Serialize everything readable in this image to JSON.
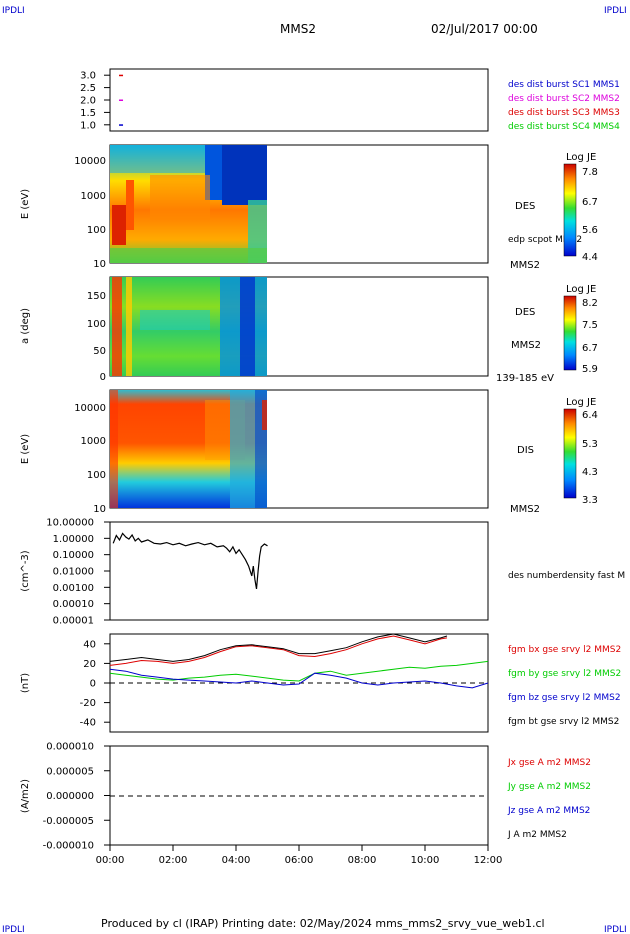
{
  "header": {
    "title": "MMS2",
    "date": "02/Jul/2017 00:00",
    "corner_left": "IPDLI",
    "corner_right": "IPDLI",
    "corner_bottom_left": "IPDLI",
    "corner_bottom_right": "IPDLI"
  },
  "footer": {
    "text": "Produced by cl (IRAP)   Printing date: 02/May/2024   mms_mms2_srvy_vue_web1.cl"
  },
  "colors": {
    "c1": "#0000cc",
    "c2": "#dd00dd",
    "c3": "#dd0000",
    "c4": "#00cc00",
    "black": "#000000"
  },
  "chart_data": [
    {
      "type": "scatter",
      "panel": "spacecraft",
      "ylim": [
        0.75,
        3.25
      ],
      "yticks": [
        "3.0",
        "2.5",
        "2.0",
        "1.5",
        "1.0"
      ],
      "legend": [
        {
          "name": "des dist burst SC1 MMS1",
          "color": "#0000cc"
        },
        {
          "name": "des dist burst SC2 MMS2",
          "color": "#dd00dd"
        },
        {
          "name": "des dist burst SC3 MMS3",
          "color": "#dd0000"
        },
        {
          "name": "des dist burst SC4 MMS4",
          "color": "#00cc00"
        }
      ],
      "points": [
        {
          "x": 0.35,
          "y": 3.0,
          "color": "#dd0000"
        },
        {
          "x": 0.35,
          "y": 2.0,
          "color": "#dd00dd"
        },
        {
          "x": 0.35,
          "y": 1.0,
          "color": "#0000cc"
        }
      ]
    },
    {
      "type": "heatmap",
      "panel": "des_energy",
      "ylabel": "E (eV)",
      "yscale": "log",
      "yticks": [
        "10000",
        "1000",
        "100",
        "10"
      ],
      "xlim": [
        0,
        12
      ],
      "data_end_hours": 5.0,
      "right_label": "DES",
      "right_sublabel": "edp scpot MMS2",
      "right_footer": "MMS2",
      "colorbar": {
        "title": "Log JE",
        "ticks": [
          "7.8",
          "6.7",
          "5.6",
          "4.4"
        ]
      }
    },
    {
      "type": "heatmap",
      "panel": "des_pitch",
      "ylabel": "a (deg)",
      "yticks": [
        "150",
        "100",
        "50",
        "0"
      ],
      "ylim": [
        0,
        180
      ],
      "xlim": [
        0,
        12
      ],
      "data_end_hours": 5.0,
      "right_label": "DES",
      "right_sublabel": "MMS2",
      "right_footer": "139-185 eV",
      "colorbar": {
        "title": "Log JE",
        "ticks": [
          "8.2",
          "7.5",
          "6.7",
          "5.9"
        ]
      }
    },
    {
      "type": "heatmap",
      "panel": "dis_energy",
      "ylabel": "E (eV)",
      "yscale": "log",
      "yticks": [
        "10000",
        "1000",
        "100",
        "10"
      ],
      "xlim": [
        0,
        12
      ],
      "data_end_hours": 5.0,
      "right_label": "DIS",
      "right_footer": "MMS2",
      "colorbar": {
        "title": "Log JE",
        "ticks": [
          "6.4",
          "5.3",
          "4.3",
          "3.3"
        ]
      }
    },
    {
      "type": "line",
      "panel": "density",
      "ylabel": "(cm^-3)",
      "yscale": "log",
      "yticks": [
        "10.00000",
        "1.00000",
        "0.10000",
        "0.01000",
        "0.00100",
        "0.00010",
        "0.00001"
      ],
      "xlim": [
        0,
        12
      ],
      "series": [
        {
          "name": "des numberdensity fast M",
          "color": "#000000",
          "x": [
            0.1,
            0.2,
            0.3,
            0.4,
            0.5,
            0.6,
            0.7,
            0.8,
            0.9,
            1.0,
            1.2,
            1.4,
            1.6,
            1.8,
            2.0,
            2.2,
            2.4,
            2.6,
            2.8,
            3.0,
            3.2,
            3.4,
            3.6,
            3.7,
            3.8,
            3.9,
            4.0,
            4.1,
            4.2,
            4.3,
            4.4,
            4.5,
            4.55,
            4.6,
            4.65,
            4.7,
            4.75,
            4.8,
            4.9,
            5.0
          ],
          "y": [
            0.5,
            1.5,
            0.8,
            2.0,
            1.2,
            0.9,
            1.6,
            0.7,
            1.0,
            0.6,
            0.8,
            0.5,
            0.45,
            0.55,
            0.4,
            0.5,
            0.35,
            0.45,
            0.55,
            0.4,
            0.5,
            0.3,
            0.35,
            0.25,
            0.15,
            0.3,
            0.12,
            0.2,
            0.1,
            0.05,
            0.02,
            0.005,
            0.02,
            0.003,
            0.0008,
            0.01,
            0.08,
            0.3,
            0.45,
            0.35
          ]
        }
      ]
    },
    {
      "type": "line",
      "panel": "magnetic_field",
      "ylabel": "(nT)",
      "ylim": [
        -50,
        50
      ],
      "yticks": [
        "40",
        "20",
        "0",
        "-20",
        "-40"
      ],
      "xlim": [
        0,
        12
      ],
      "series": [
        {
          "name": "fgm bx gse srvy l2 MMS2",
          "color": "#dd0000",
          "x": [
            0,
            0.5,
            1,
            1.5,
            2,
            2.5,
            3,
            3.5,
            4,
            4.5,
            5,
            5.5,
            6,
            6.5,
            7,
            7.5,
            8,
            8.5,
            9,
            9.5,
            10,
            10.5,
            10.7
          ],
          "y": [
            18,
            20,
            23,
            22,
            20,
            22,
            26,
            32,
            37,
            38,
            36,
            34,
            28,
            27,
            30,
            34,
            40,
            45,
            48,
            44,
            40,
            45,
            46
          ]
        },
        {
          "name": "fgm by gse srvy l2 MMS2",
          "color": "#00cc00",
          "x": [
            0,
            0.5,
            1,
            1.5,
            2,
            2.5,
            3,
            3.5,
            4,
            4.5,
            5,
            5.5,
            6,
            6.5,
            7,
            7.5,
            8,
            8.5,
            9,
            9.5,
            10,
            10.5,
            11,
            11.5,
            12
          ],
          "y": [
            10,
            8,
            6,
            4,
            3,
            5,
            6,
            8,
            9,
            7,
            5,
            3,
            2,
            10,
            12,
            8,
            10,
            12,
            14,
            16,
            15,
            17,
            18,
            20,
            22
          ]
        },
        {
          "name": "fgm bz gse srvy l2 MMS2",
          "color": "#0000cc",
          "x": [
            0,
            0.5,
            1,
            1.5,
            2,
            2.5,
            3,
            3.5,
            4,
            4.5,
            5,
            5.5,
            6,
            6.5,
            7,
            7.5,
            8,
            8.5,
            9,
            9.5,
            10,
            10.5,
            11,
            11.5,
            12
          ],
          "y": [
            14,
            12,
            8,
            6,
            4,
            3,
            2,
            1,
            0,
            2,
            0,
            -2,
            -1,
            10,
            8,
            5,
            0,
            -2,
            0,
            1,
            2,
            0,
            -3,
            -5,
            0
          ]
        },
        {
          "name": "fgm bt gse srvy l2 MMS2",
          "color": "#000000",
          "x": [
            0,
            0.5,
            1,
            1.5,
            2,
            2.5,
            3,
            3.5,
            4,
            4.5,
            5,
            5.5,
            6,
            6.5,
            7,
            7.5,
            8,
            8.5,
            9,
            9.5,
            10,
            10.5,
            10.7
          ],
          "y": [
            22,
            24,
            26,
            24,
            22,
            24,
            28,
            34,
            38,
            39,
            37,
            35,
            30,
            30,
            33,
            36,
            42,
            47,
            50,
            46,
            42,
            46,
            48
          ]
        }
      ]
    },
    {
      "type": "line",
      "panel": "current",
      "ylabel": "(A/m2)",
      "ylim": [
        -1e-05,
        1e-05
      ],
      "yticks": [
        "0.000010",
        "0.000005",
        "0.000000",
        "-0.000005",
        "-0.000010"
      ],
      "xlim": [
        0,
        12
      ],
      "xticks": [
        "00:00",
        "02:00",
        "04:00",
        "06:00",
        "08:00",
        "10:00",
        "12:00"
      ],
      "series": [
        {
          "name": "Jx gse A m2 MMS2",
          "color": "#dd0000"
        },
        {
          "name": "Jy gse A m2 MMS2",
          "color": "#00cc00"
        },
        {
          "name": "Jz gse A m2 MMS2",
          "color": "#0000cc"
        },
        {
          "name": "J A m2 MMS2",
          "color": "#000000"
        }
      ]
    }
  ]
}
